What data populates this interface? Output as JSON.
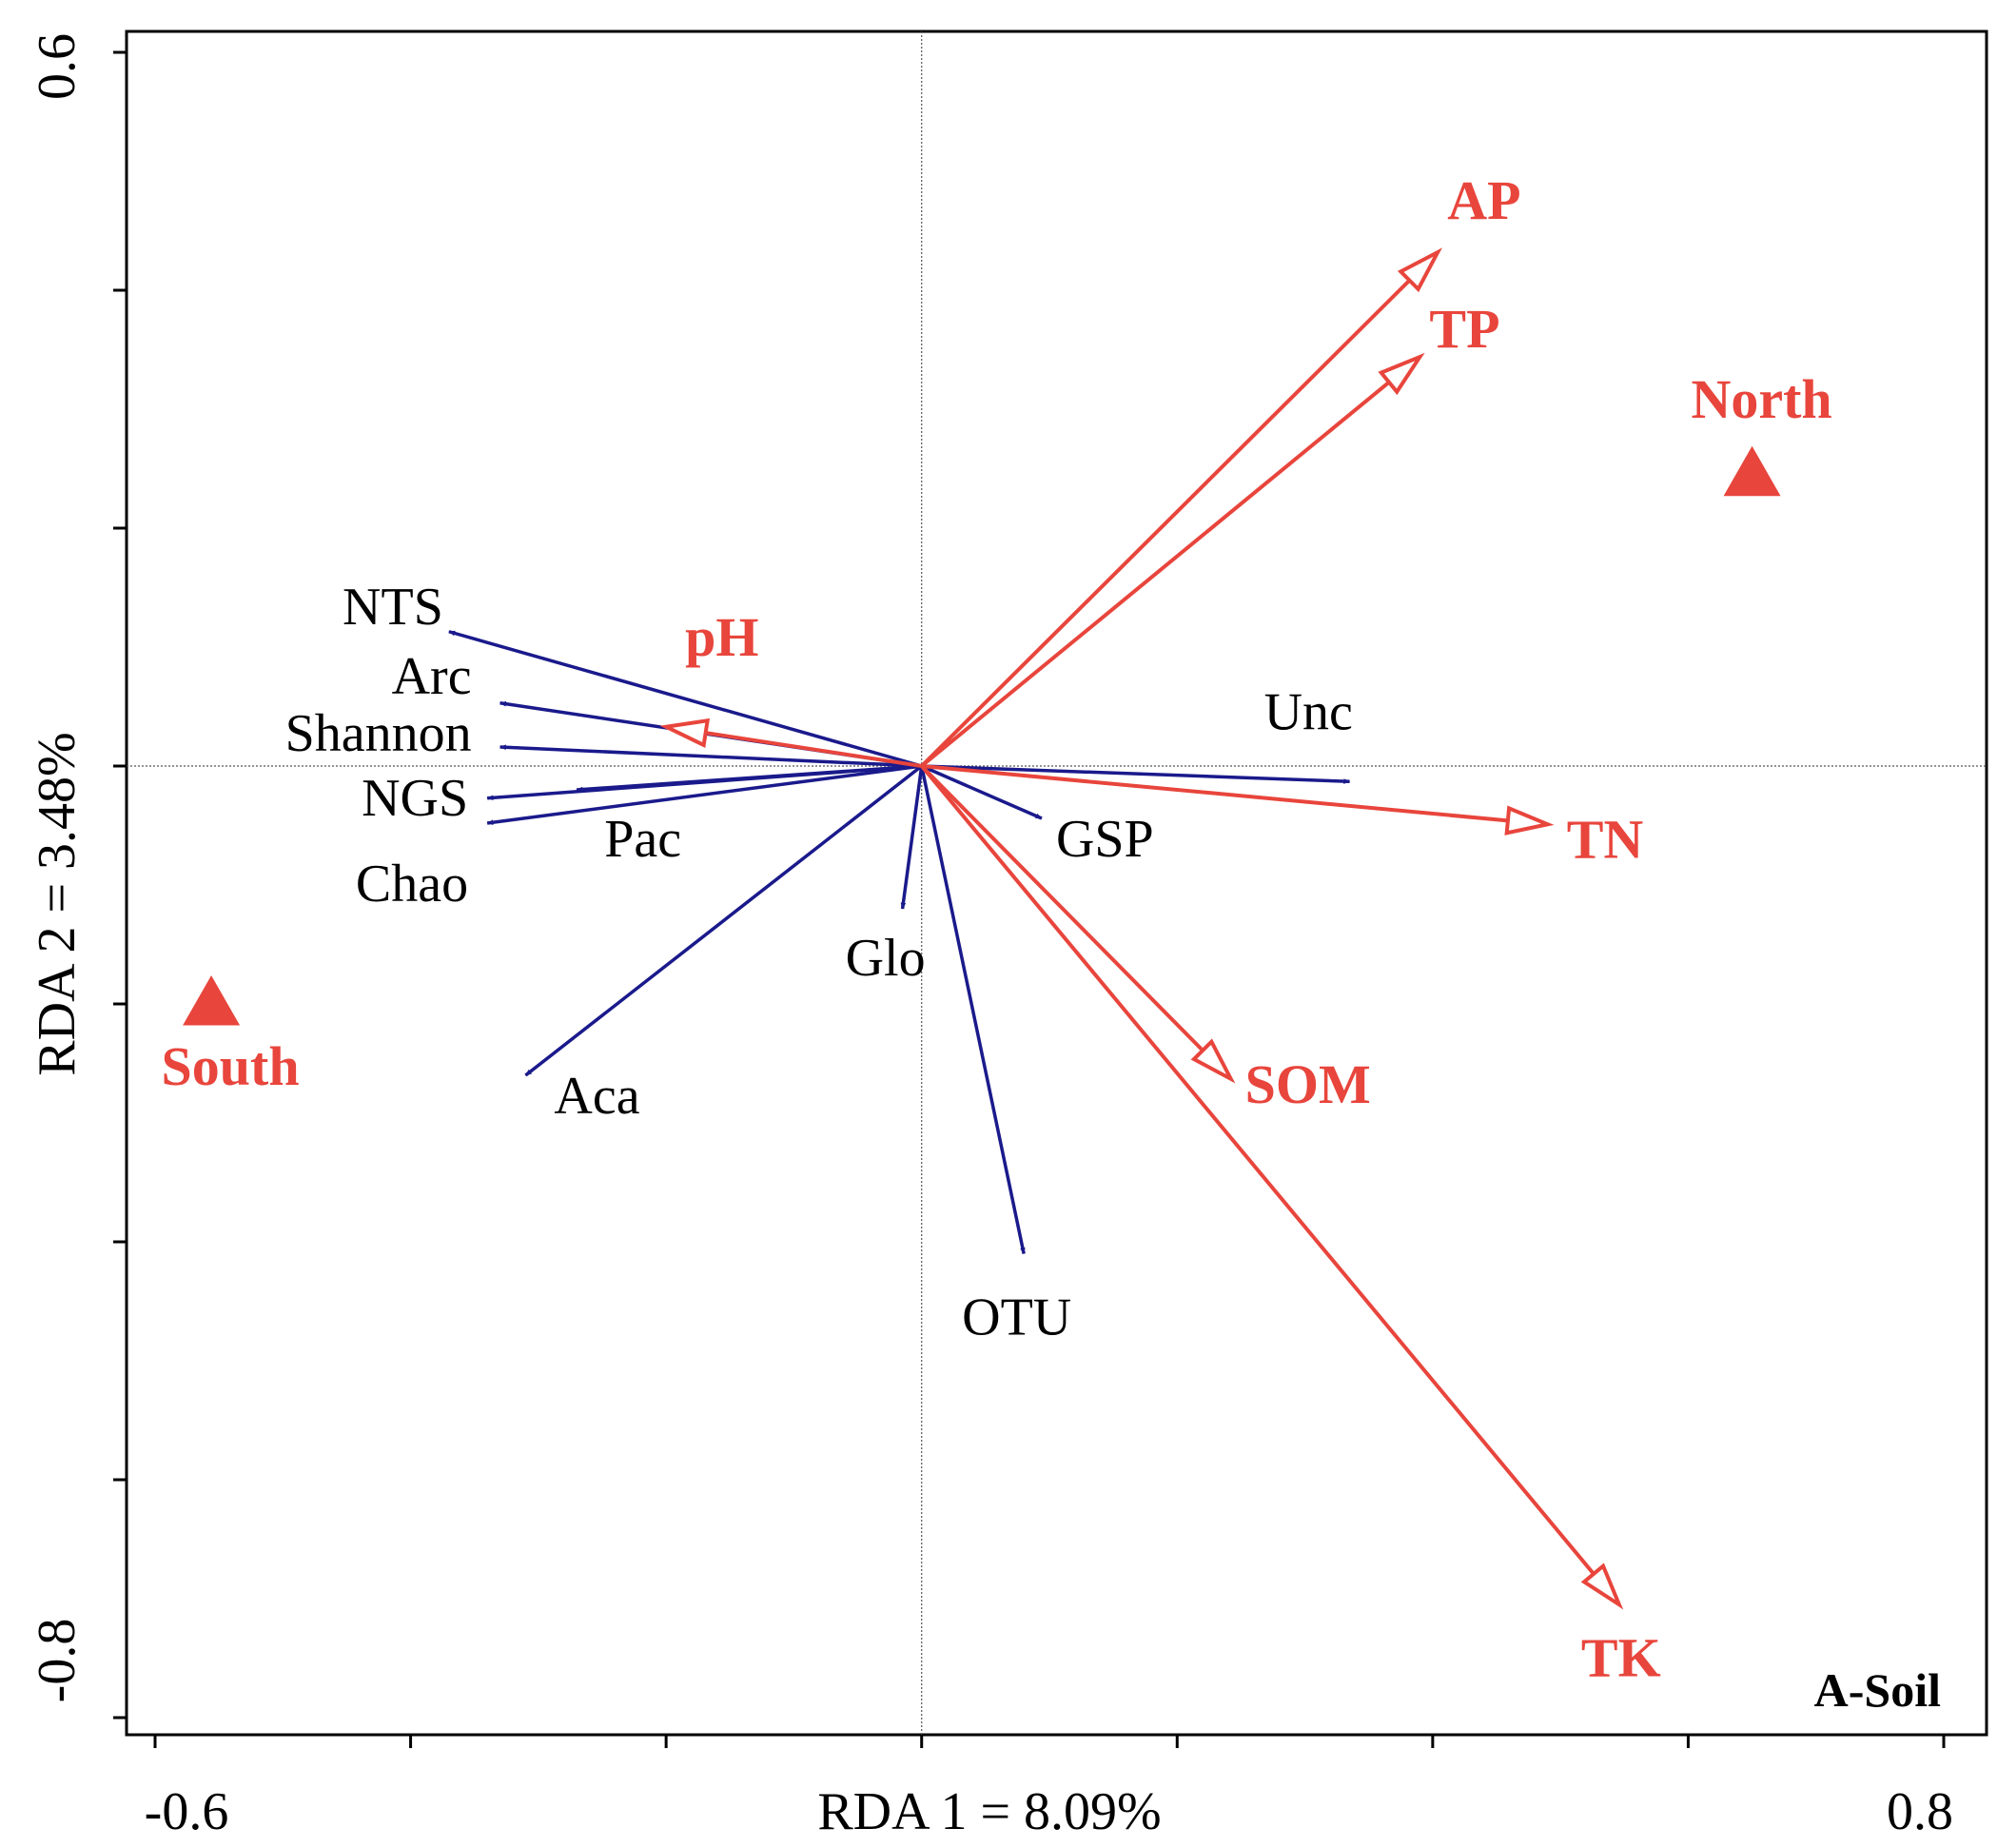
{
  "chart_data": {
    "type": "scatter",
    "subtype": "rda-biplot",
    "title": "",
    "panel_label": "A-Soil",
    "xlabel": "RDA 1 = 8.09%",
    "ylabel": "RDA 2 = 3.48%",
    "xlim": [
      -0.6,
      0.8
    ],
    "ylim": [
      -0.8,
      0.6
    ],
    "x_tick_labels": [
      "-0.6",
      "0.8"
    ],
    "y_tick_labels": [
      "0.6",
      "-0.8"
    ],
    "x_tick_values": [
      -0.6,
      -0.4,
      -0.2,
      0.0,
      0.2,
      0.4,
      0.6,
      0.8
    ],
    "y_tick_values": [
      0.6,
      0.4,
      0.2,
      0.0,
      -0.2,
      -0.4,
      -0.6,
      -0.8
    ],
    "colors": {
      "environment": "#e8453c",
      "species": "#1a1a8c",
      "sites": "#e8453c",
      "text": "#000000"
    },
    "species_vectors": [
      {
        "name": "NTS",
        "x": -0.37,
        "y": 0.113
      },
      {
        "name": "Arc",
        "x": -0.33,
        "y": 0.053
      },
      {
        "name": "Shannon",
        "x": -0.33,
        "y": 0.016
      },
      {
        "name": "NGS",
        "x": -0.34,
        "y": -0.027
      },
      {
        "name": "Pac",
        "x": -0.27,
        "y": -0.02
      },
      {
        "name": "Chao",
        "x": -0.34,
        "y": -0.048
      },
      {
        "name": "Aca",
        "x": -0.31,
        "y": -0.26
      },
      {
        "name": "Glo",
        "x": -0.015,
        "y": -0.12
      },
      {
        "name": "GSP",
        "x": 0.094,
        "y": -0.044
      },
      {
        "name": "Unc",
        "x": 0.335,
        "y": -0.013
      },
      {
        "name": "OTU",
        "x": 0.08,
        "y": -0.41
      }
    ],
    "environment_vectors": [
      {
        "name": "AP",
        "x": 0.404,
        "y": 0.432
      },
      {
        "name": "TP",
        "x": 0.39,
        "y": 0.344
      },
      {
        "name": "pH",
        "x": -0.2,
        "y": 0.033
      },
      {
        "name": "TN",
        "x": 0.49,
        "y": -0.049
      },
      {
        "name": "SOM",
        "x": 0.242,
        "y": -0.263
      },
      {
        "name": "TK",
        "x": 0.546,
        "y": -0.705
      }
    ],
    "sites": [
      {
        "name": "North",
        "x": 0.65,
        "y": 0.245
      },
      {
        "name": "South",
        "x": -0.556,
        "y": -0.2
      }
    ]
  }
}
